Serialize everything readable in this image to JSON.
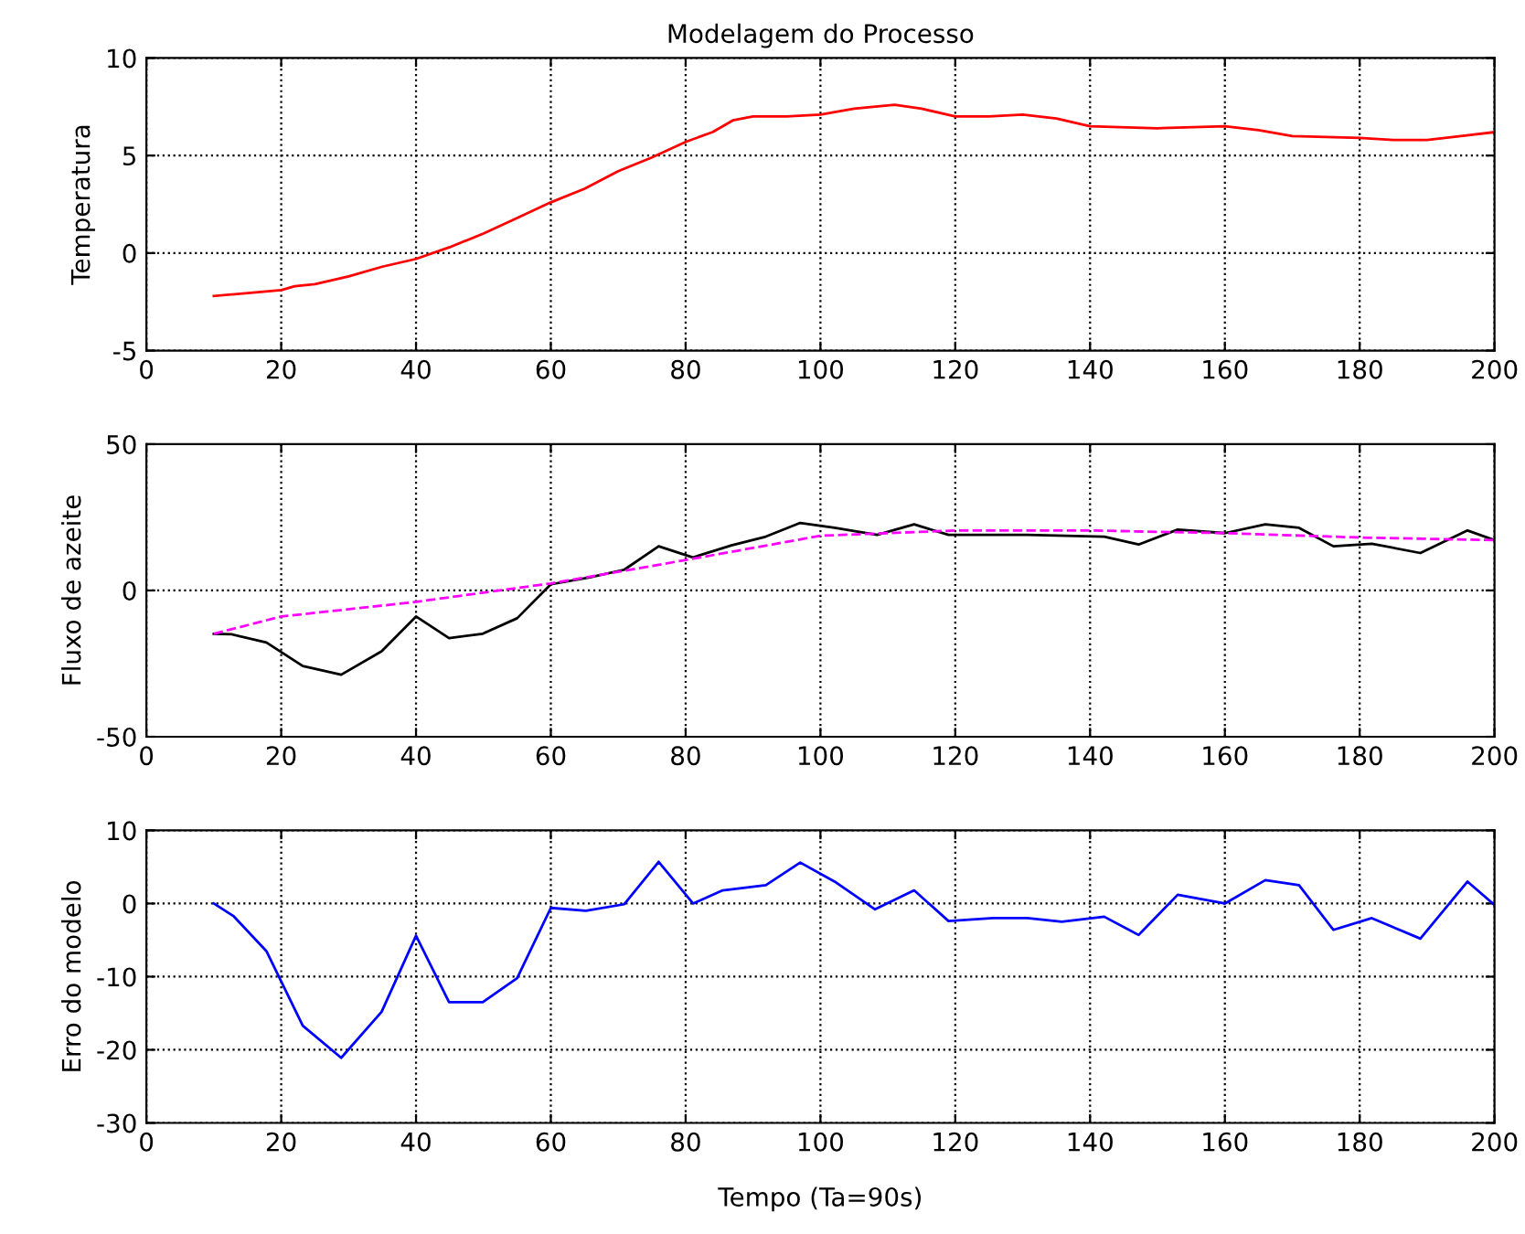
{
  "chart_data": [
    {
      "type": "line",
      "title": "Modelagem do Processo",
      "ylabel": "Temperatura",
      "xlim": [
        0,
        200
      ],
      "xticks": [
        0,
        20,
        40,
        60,
        80,
        100,
        120,
        140,
        160,
        180,
        200
      ],
      "ylim": [
        -5,
        10
      ],
      "yticks": [
        -5,
        0,
        5,
        10
      ],
      "grid": true,
      "line_style": "solid",
      "series": [
        {
          "color": "#ff0000",
          "x": [
            10,
            20,
            22,
            25,
            30,
            35,
            40,
            45,
            50,
            55,
            60,
            65,
            70,
            75,
            80,
            84,
            87,
            90,
            95,
            100,
            105,
            111,
            115,
            120,
            125,
            130,
            135,
            140,
            150,
            160,
            165,
            170,
            180,
            185,
            190,
            195,
            200
          ],
          "values": [
            -2.2,
            -1.9,
            -1.7,
            -1.6,
            -1.2,
            -0.7,
            -0.3,
            0.3,
            1.0,
            1.8,
            2.6,
            3.3,
            4.2,
            4.9,
            5.7,
            6.2,
            6.8,
            7.0,
            7.0,
            7.1,
            7.4,
            7.6,
            7.4,
            7.0,
            7.0,
            7.1,
            6.9,
            6.5,
            6.4,
            6.5,
            6.3,
            6.0,
            5.9,
            5.8,
            5.8,
            6.0,
            6.2
          ]
        }
      ]
    },
    {
      "type": "line",
      "ylabel": "Fluxo de azeite",
      "xlim": [
        0,
        200
      ],
      "xticks": [
        0,
        20,
        40,
        60,
        80,
        100,
        120,
        140,
        160,
        180,
        200
      ],
      "ylim": [
        -50,
        50
      ],
      "yticks": [
        -50,
        0,
        50
      ],
      "grid": true,
      "series": [
        {
          "color": "#000000",
          "line_style": "solid",
          "x": [
            10,
            12.7,
            17.8,
            23.2,
            28.9,
            34.9,
            40,
            44.9,
            49.9,
            55,
            60,
            65.8,
            70.9,
            76,
            81.1,
            86.8,
            91.9,
            97,
            102.1,
            108.4,
            113.9,
            119,
            130.7,
            142.1,
            147.2,
            153,
            160,
            166,
            171,
            176.1,
            181.8,
            189,
            196,
            200
          ],
          "values": [
            -14.8,
            -15,
            -17.8,
            -25.8,
            -28.8,
            -20.8,
            -8.9,
            -16.3,
            -14.8,
            -9.5,
            2.1,
            4.5,
            7.1,
            15.1,
            11.3,
            15.4,
            18.4,
            23.1,
            21.4,
            19,
            22.6,
            19,
            19,
            18.4,
            15.7,
            20.8,
            19.6,
            22.6,
            21.4,
            15.1,
            16,
            12.8,
            20.5,
            17.2
          ]
        },
        {
          "color": "#ff00ff",
          "line_style": "dashed",
          "x": [
            10,
            20,
            40,
            60,
            80,
            100,
            120,
            140,
            160,
            180,
            200
          ],
          "values": [
            -14.8,
            -8.9,
            -3.9,
            2.4,
            10.4,
            18.7,
            20.5,
            20.5,
            19.6,
            18.1,
            17.2
          ]
        }
      ]
    },
    {
      "type": "line",
      "ylabel": "Erro do modelo",
      "xlabel": "Tempo (Ta=90s)",
      "xlim": [
        0,
        200
      ],
      "xticks": [
        0,
        20,
        40,
        60,
        80,
        100,
        120,
        140,
        160,
        180,
        200
      ],
      "ylim": [
        -30,
        10
      ],
      "yticks": [
        -30,
        -20,
        -10,
        0,
        10
      ],
      "grid": true,
      "line_style": "solid",
      "series": [
        {
          "color": "#0000ff",
          "x": [
            10,
            12.9,
            17.8,
            23.2,
            28.9,
            34.9,
            40,
            44.9,
            49.9,
            55,
            60,
            65.2,
            70.9,
            76,
            81.1,
            85.5,
            91.9,
            97,
            102.1,
            108.1,
            113.9,
            119,
            125.6,
            130.7,
            135.8,
            142.1,
            147.2,
            153,
            160,
            166,
            171,
            176.1,
            181.8,
            189,
            196,
            200
          ],
          "values": [
            0,
            -1.7,
            -6.5,
            -16.7,
            -21.1,
            -14.8,
            -4.4,
            -13.5,
            -13.5,
            -10.2,
            -0.6,
            -1,
            -0.1,
            5.7,
            0,
            1.8,
            2.5,
            5.6,
            3,
            -0.8,
            1.8,
            -2.4,
            -2,
            -2,
            -2.5,
            -1.8,
            -4.3,
            1.2,
            0,
            3.2,
            2.5,
            -3.6,
            -2,
            -4.8,
            3,
            -0.2
          ]
        }
      ]
    }
  ]
}
